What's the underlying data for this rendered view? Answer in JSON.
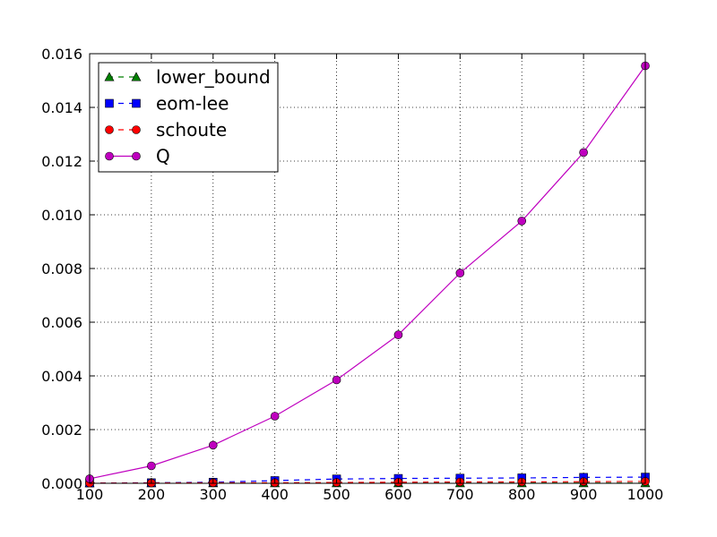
{
  "chart_data": {
    "type": "line",
    "title": "",
    "xlabel": "",
    "ylabel": "",
    "x": [
      100,
      200,
      300,
      400,
      500,
      600,
      700,
      800,
      900,
      1000
    ],
    "xlim": [
      100,
      1000
    ],
    "ylim": [
      0,
      0.016
    ],
    "x_ticks": [
      "100",
      "200",
      "300",
      "400",
      "500",
      "600",
      "700",
      "800",
      "900",
      "1000"
    ],
    "y_ticks": [
      "0.000",
      "0.002",
      "0.004",
      "0.006",
      "0.008",
      "0.010",
      "0.012",
      "0.014",
      "0.016"
    ],
    "grid": true,
    "legend_position": "upper-left",
    "series": [
      {
        "name": "lower_bound",
        "color": "#008000",
        "marker": "triangle",
        "linestyle": "dashed",
        "values": [
          1e-05,
          1e-05,
          1e-05,
          1e-05,
          1e-05,
          1e-05,
          1e-05,
          1e-05,
          1e-05,
          1e-05
        ]
      },
      {
        "name": "eom-lee",
        "color": "#0000ff",
        "marker": "square",
        "linestyle": "dashed",
        "values": [
          1e-05,
          2e-05,
          4e-05,
          0.0001,
          0.00016,
          0.00018,
          0.00019,
          0.0002,
          0.00022,
          0.00023
        ]
      },
      {
        "name": "schoute",
        "color": "#ff0000",
        "marker": "circle",
        "linestyle": "dashed",
        "values": [
          1e-05,
          1e-05,
          2e-05,
          2e-05,
          3e-05,
          4e-05,
          5e-05,
          5e-05,
          6e-05,
          7e-05
        ]
      },
      {
        "name": "Q",
        "color": "#bf00bf",
        "marker": "circle",
        "linestyle": "solid",
        "values": [
          0.00017,
          0.00065,
          0.00142,
          0.0025,
          0.00385,
          0.00553,
          0.00783,
          0.00977,
          0.01232,
          0.01555
        ]
      }
    ]
  }
}
